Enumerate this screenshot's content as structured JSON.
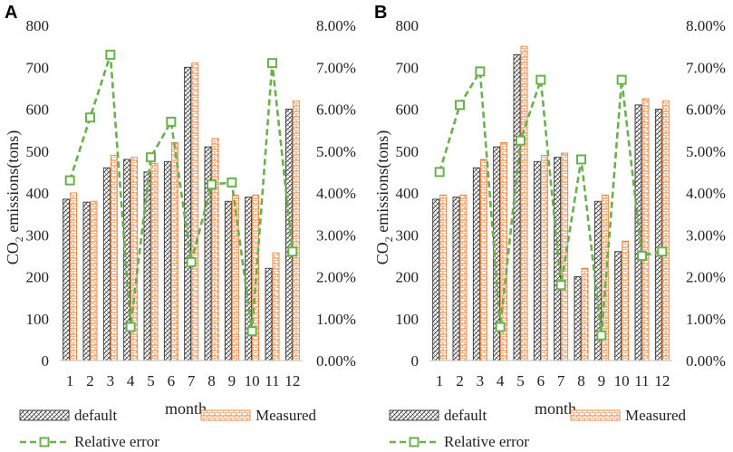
{
  "colors": {
    "default_stroke": "#333333",
    "measured_stroke": "#e8823a",
    "line": "#6ab04c",
    "axis": "#bfbfbf"
  },
  "chart_data": [
    {
      "panel": "A",
      "type": "bar+line",
      "xlabel": "month",
      "ylabel": "CO2 emissions(tons)",
      "ylabel_main": "CO",
      "ylabel_sub": "2",
      "ylabel_rest": " emissions(tons)",
      "ylim": [
        0,
        800
      ],
      "y2lim": [
        0,
        8
      ],
      "yticks": [
        "0",
        "100",
        "200",
        "300",
        "400",
        "500",
        "600",
        "700",
        "800"
      ],
      "y2ticks": [
        "0.00%",
        "1.00%",
        "2.00%",
        "3.00%",
        "4.00%",
        "5.00%",
        "6.00%",
        "7.00%",
        "8.00%"
      ],
      "categories": [
        "1",
        "2",
        "3",
        "4",
        "5",
        "6",
        "7",
        "8",
        "9",
        "10",
        "11",
        "12"
      ],
      "series": [
        {
          "name": "default",
          "axis": "left",
          "values": [
            385,
            378,
            460,
            480,
            450,
            475,
            700,
            510,
            380,
            390,
            220,
            600
          ]
        },
        {
          "name": "Measured",
          "axis": "right_bar",
          "values": [
            400,
            380,
            490,
            485,
            470,
            520,
            710,
            530,
            395,
            395,
            257,
            620
          ]
        },
        {
          "name": "Relative error",
          "axis": "right",
          "unit": "%",
          "values": [
            4.3,
            5.8,
            7.3,
            0.8,
            4.85,
            5.7,
            2.35,
            4.2,
            4.25,
            0.7,
            7.1,
            2.6
          ]
        }
      ],
      "legend": [
        "default",
        "Measured",
        "Relative error"
      ]
    },
    {
      "panel": "B",
      "type": "bar+line",
      "xlabel": "month",
      "ylabel": "CO2 emissions(tons)",
      "ylabel_main": "CO",
      "ylabel_sub": "2",
      "ylabel_rest": " emissions(tons)",
      "ylim": [
        0,
        800
      ],
      "y2lim": [
        0,
        8
      ],
      "yticks": [
        "0",
        "100",
        "200",
        "300",
        "400",
        "500",
        "600",
        "700",
        "800"
      ],
      "y2ticks": [
        "0.00%",
        "1.00%",
        "2.00%",
        "3.00%",
        "4.00%",
        "5.00%",
        "6.00%",
        "7.00%",
        "8.00%"
      ],
      "categories": [
        "1",
        "2",
        "3",
        "4",
        "5",
        "6",
        "7",
        "8",
        "9",
        "10",
        "11",
        "12"
      ],
      "series": [
        {
          "name": "default",
          "axis": "left",
          "values": [
            385,
            390,
            460,
            510,
            730,
            475,
            485,
            200,
            380,
            260,
            610,
            600
          ]
        },
        {
          "name": "Measured",
          "axis": "right_bar",
          "values": [
            395,
            395,
            480,
            520,
            750,
            490,
            495,
            220,
            395,
            285,
            625,
            620
          ]
        },
        {
          "name": "Relative error",
          "axis": "right",
          "unit": "%",
          "values": [
            4.5,
            6.1,
            6.9,
            0.8,
            5.25,
            6.7,
            1.8,
            4.8,
            0.6,
            6.7,
            2.5,
            2.6
          ]
        }
      ],
      "legend": [
        "default",
        "Measured",
        "Relative error"
      ]
    }
  ]
}
